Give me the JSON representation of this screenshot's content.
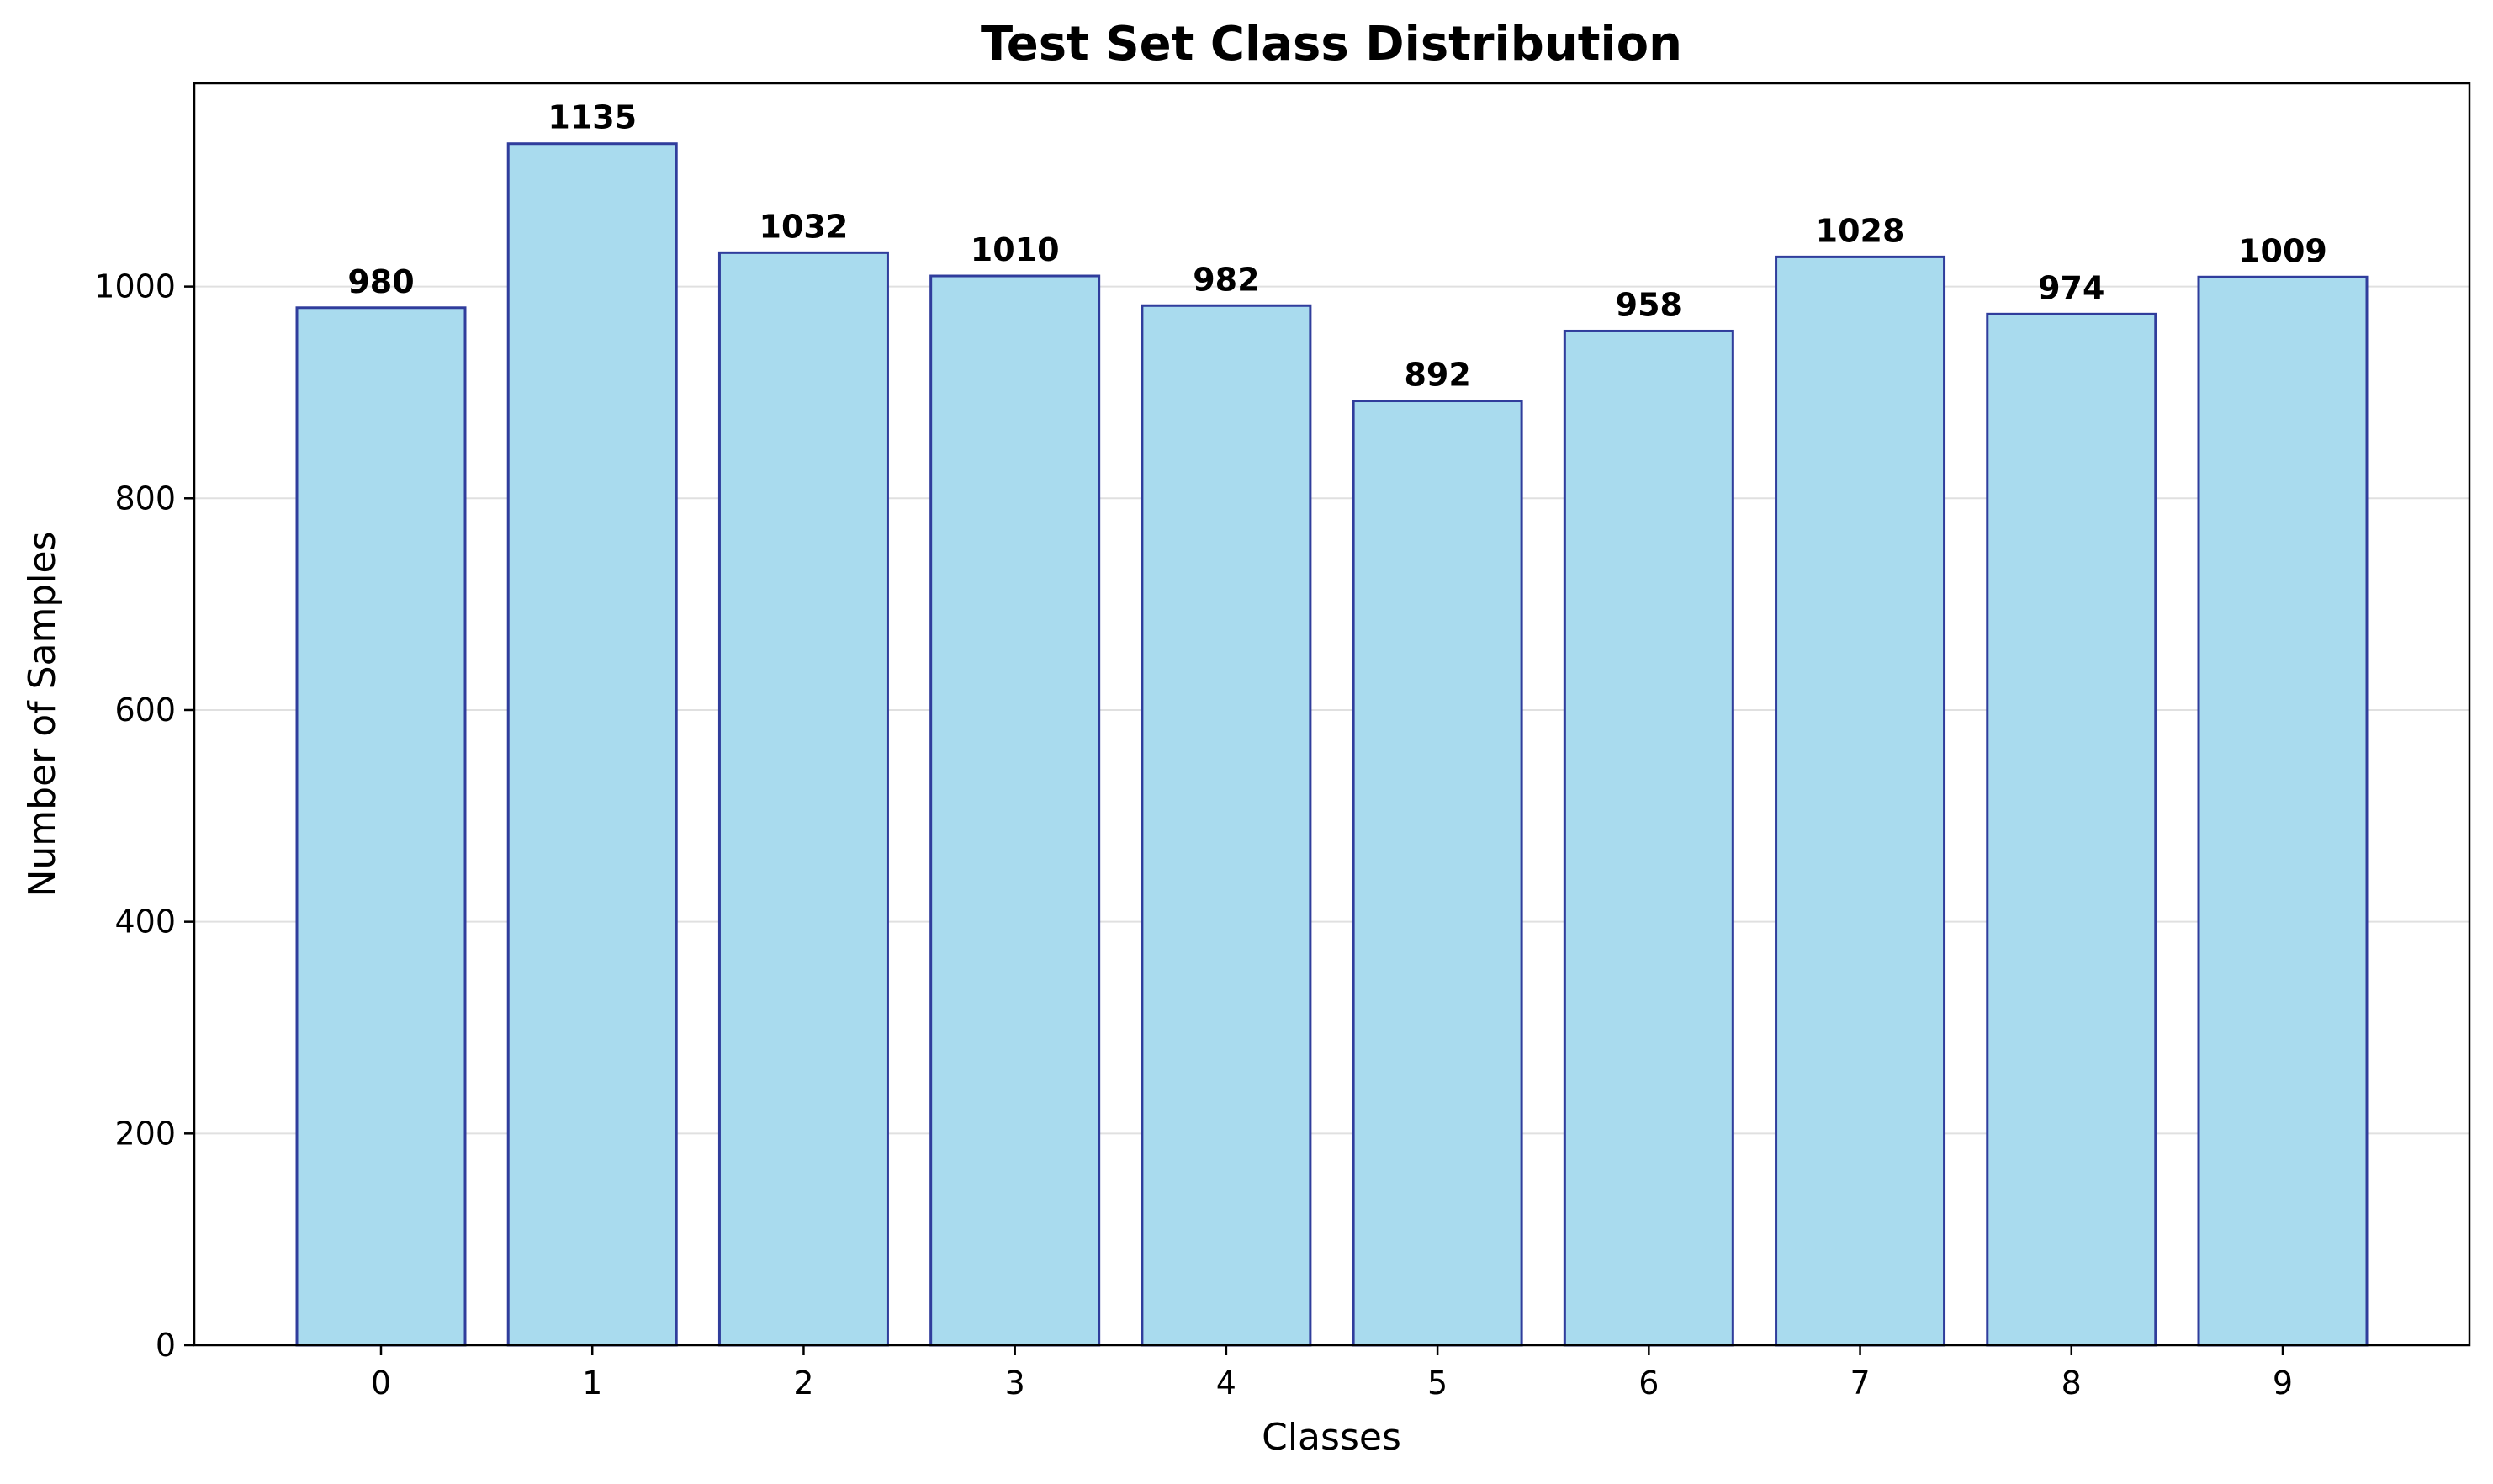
{
  "chart_data": {
    "type": "bar",
    "title": "Test Set Class Distribution",
    "xlabel": "Classes",
    "ylabel": "Number of Samples",
    "categories": [
      "0",
      "1",
      "2",
      "3",
      "4",
      "5",
      "6",
      "7",
      "8",
      "9"
    ],
    "values": [
      980,
      1135,
      1032,
      1010,
      982,
      892,
      958,
      1028,
      974,
      1009
    ],
    "data_labels": [
      "980",
      "1135",
      "1032",
      "1010",
      "982",
      "892",
      "958",
      "1028",
      "974",
      "1009"
    ],
    "ylim": [
      0,
      1192
    ],
    "yticks": [
      0,
      200,
      400,
      600,
      800,
      1000
    ],
    "ytick_labels": [
      "0",
      "200",
      "400",
      "600",
      "800",
      "1000"
    ],
    "grid": "y",
    "legend": "none"
  },
  "colors": {
    "bar_fill": "#a9dbee",
    "bar_edge": "#303d9c",
    "grid": "#e0e0e0",
    "axes": "#000000",
    "background": "#ffffff"
  }
}
